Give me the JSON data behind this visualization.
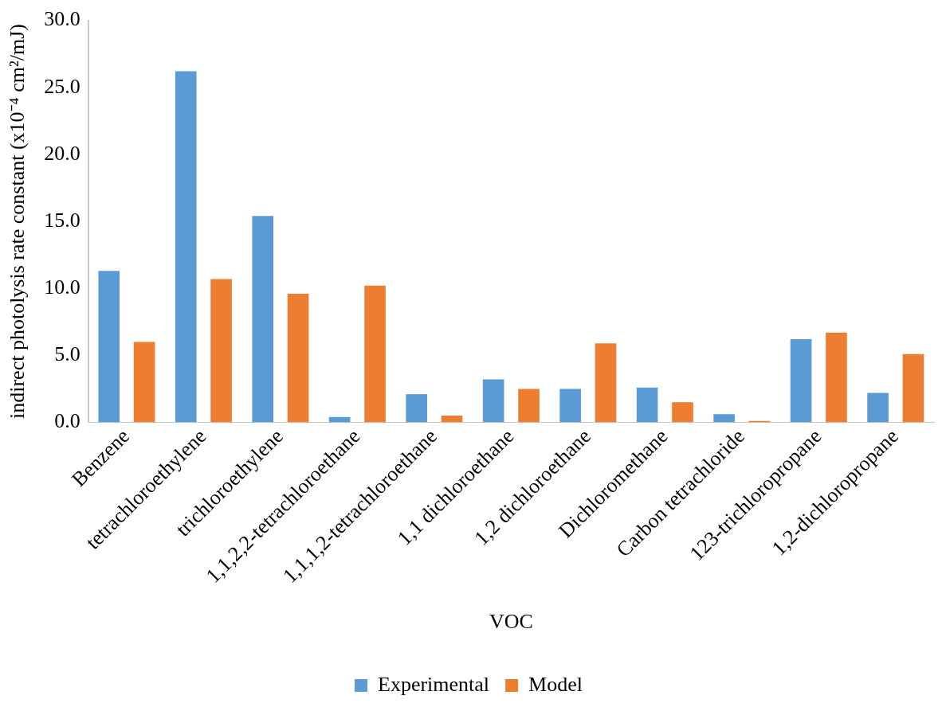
{
  "chart_data": {
    "type": "bar",
    "xlabel": "VOC",
    "ylabel": "indirect photolysis rate constant (x10⁻⁴ cm²/mJ)",
    "categories": [
      "Benzene",
      "tetrachloroethylene",
      "trichloroethylene",
      "1,1,2,2-tetrachloroethane",
      "1,1,1,2-tetrachloroethane",
      "1,1 dichloroethane",
      "1,2 dichloroethane",
      "Dichloromethane",
      "Carbon tetrachloride",
      "123-trichloropropane",
      "1,2-dichloropropane"
    ],
    "series": [
      {
        "name": "Experimental",
        "color": "#5b9bd5",
        "values": [
          11.3,
          26.2,
          15.4,
          0.4,
          2.1,
          3.2,
          2.5,
          2.6,
          0.6,
          6.2,
          2.2
        ]
      },
      {
        "name": "Model",
        "color": "#ed7d31",
        "values": [
          6.0,
          10.7,
          9.6,
          10.2,
          0.5,
          2.5,
          5.9,
          1.5,
          0.1,
          6.7,
          5.1
        ]
      }
    ],
    "ylim": [
      0,
      30
    ],
    "yticks": [
      {
        "value": 0,
        "label": "0.0"
      },
      {
        "value": 5,
        "label": "5.0"
      },
      {
        "value": 10,
        "label": "10.0"
      },
      {
        "value": 15,
        "label": "15.0"
      },
      {
        "value": 20,
        "label": "20.0"
      },
      {
        "value": 25,
        "label": "25.0"
      },
      {
        "value": 30,
        "label": "30.0"
      }
    ],
    "grid": false,
    "legend": "bottom"
  }
}
